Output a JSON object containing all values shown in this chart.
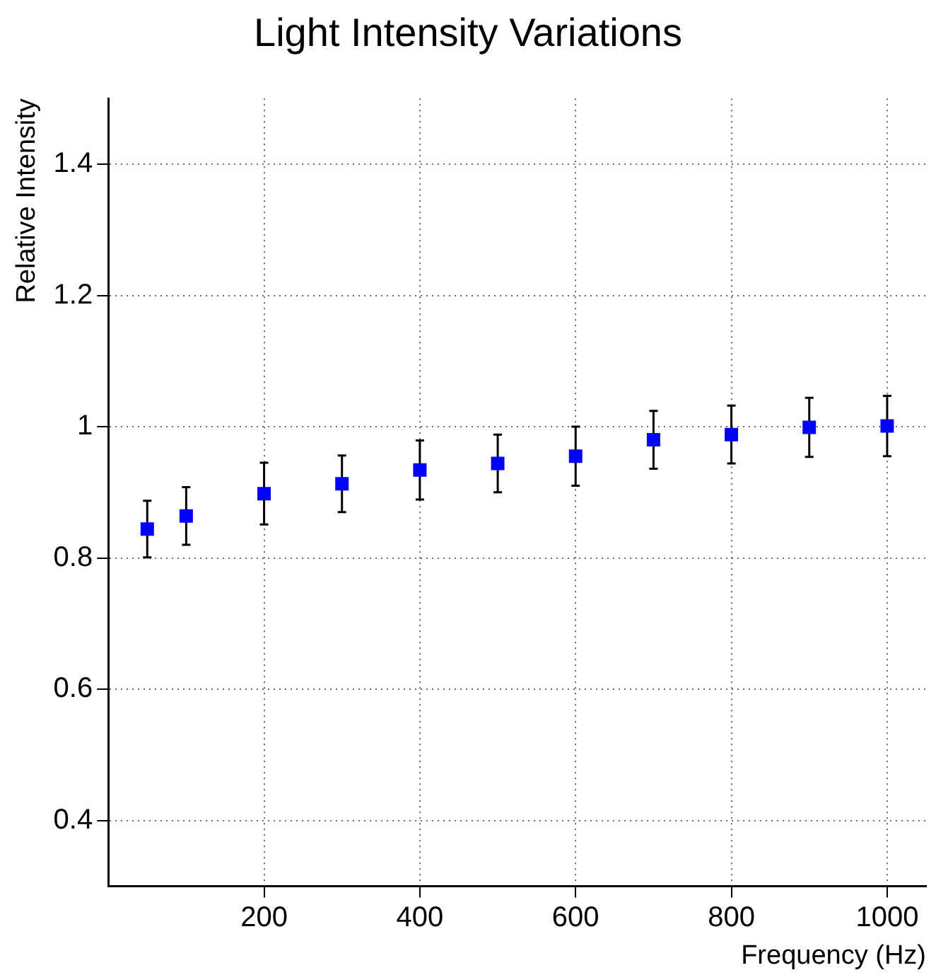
{
  "chart_data": {
    "type": "scatter",
    "title": "Light Intensity Variations",
    "xlabel": "Frequency (Hz)",
    "ylabel": "Relative Intensity",
    "x": [
      50,
      100,
      200,
      300,
      400,
      500,
      600,
      700,
      800,
      900,
      1000
    ],
    "series": [
      {
        "color": "#0000ff",
        "values": [
          0.844,
          0.864,
          0.898,
          0.913,
          0.934,
          0.944,
          0.955,
          0.98,
          0.988,
          0.999,
          1.001
        ],
        "errors": [
          0.043,
          0.044,
          0.047,
          0.043,
          0.045,
          0.044,
          0.045,
          0.044,
          0.044,
          0.045,
          0.046
        ]
      }
    ],
    "xlim": [
      0,
      1050
    ],
    "xticks": [
      200,
      400,
      600,
      800,
      1000
    ],
    "ylim": [
      0.3,
      1.5
    ],
    "yticks": [
      0.4,
      0.6,
      0.8,
      1,
      1.2,
      1.4
    ],
    "grid": true,
    "legend": false,
    "marker": "square"
  }
}
